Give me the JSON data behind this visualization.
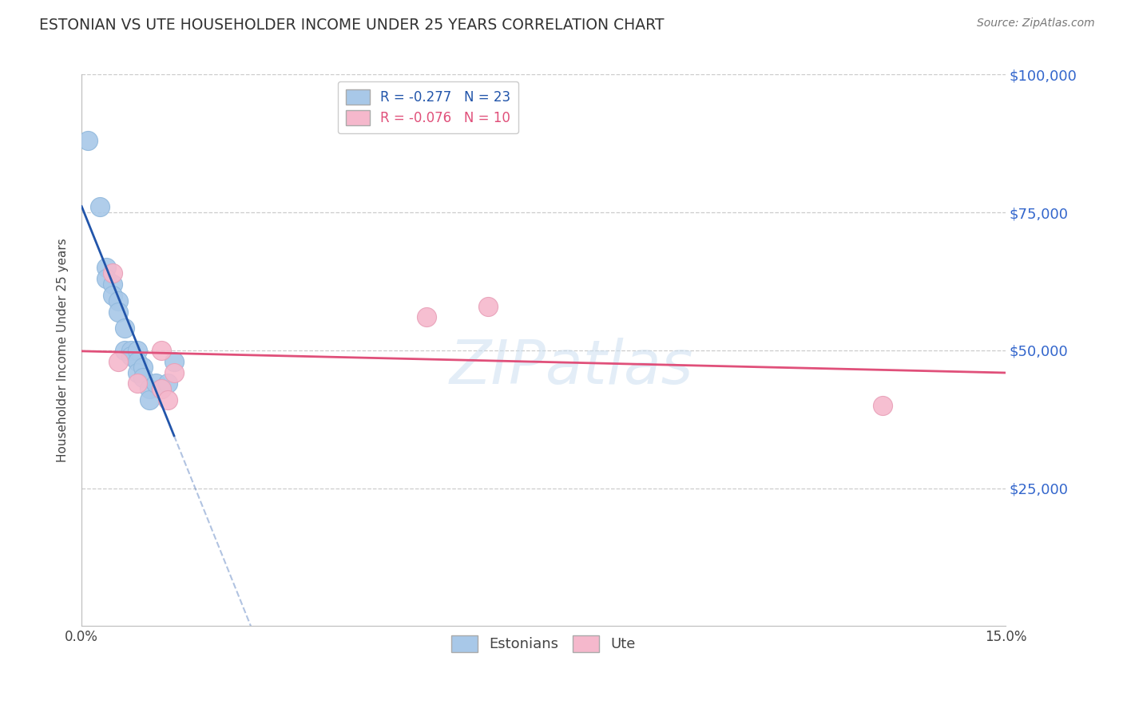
{
  "title": "ESTONIAN VS UTE HOUSEHOLDER INCOME UNDER 25 YEARS CORRELATION CHART",
  "source_text": "Source: ZipAtlas.com",
  "ylabel": "Householder Income Under 25 years",
  "xlim": [
    0.0,
    0.15
  ],
  "ylim": [
    0,
    100000
  ],
  "xtick_positions": [
    0.0,
    0.03,
    0.06,
    0.09,
    0.12,
    0.15
  ],
  "xtick_labels": [
    "0.0%",
    "",
    "",
    "",
    "",
    "15.0%"
  ],
  "ytick_labels": [
    "$100,000",
    "$75,000",
    "$50,000",
    "$25,000"
  ],
  "ytick_values": [
    100000,
    75000,
    50000,
    25000
  ],
  "legend_line1": "R = -0.277   N = 23",
  "legend_line2": "R = -0.076   N = 10",
  "watermark": "ZIPatlas",
  "estonian_color": "#a8c8e8",
  "estonian_edge_color": "#90b8dc",
  "estonian_line_color": "#2255aa",
  "ute_color": "#f5b8cc",
  "ute_edge_color": "#e8a0b8",
  "ute_line_color": "#e0507a",
  "estonian_x": [
    0.001,
    0.003,
    0.004,
    0.004,
    0.005,
    0.005,
    0.006,
    0.006,
    0.007,
    0.007,
    0.008,
    0.008,
    0.009,
    0.009,
    0.009,
    0.01,
    0.01,
    0.011,
    0.011,
    0.012,
    0.013,
    0.014,
    0.015
  ],
  "estonian_y": [
    88000,
    76000,
    65000,
    63000,
    62000,
    60000,
    59000,
    57000,
    54000,
    50000,
    50000,
    49000,
    50000,
    48000,
    46000,
    47000,
    45000,
    43000,
    41000,
    44000,
    43000,
    44000,
    48000
  ],
  "ute_x": [
    0.005,
    0.006,
    0.009,
    0.013,
    0.013,
    0.014,
    0.015,
    0.056,
    0.066,
    0.13
  ],
  "ute_y": [
    64000,
    48000,
    44000,
    50000,
    43000,
    41000,
    46000,
    56000,
    58000,
    40000
  ],
  "background_color": "#ffffff",
  "grid_color": "#cccccc",
  "legend_estonian_r_color": "#2255aa",
  "legend_ute_r_color": "#e0507a",
  "legend_n_color": "#2255aa"
}
